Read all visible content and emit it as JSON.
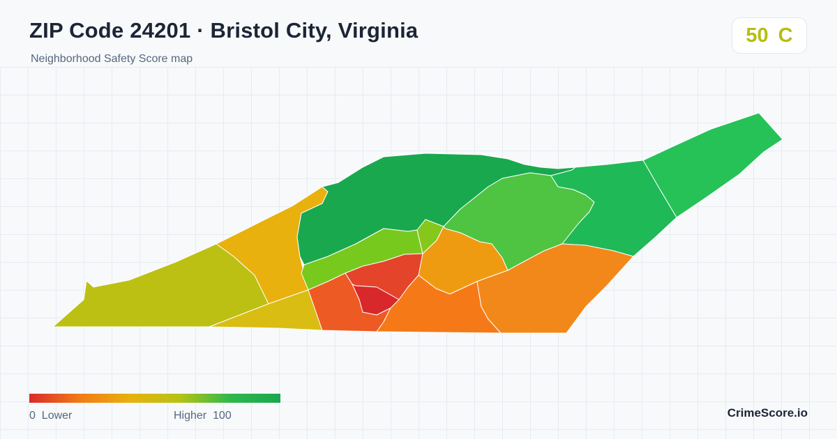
{
  "header": {
    "title": "ZIP Code 24201 · Bristol City, Virginia",
    "subtitle": "Neighborhood Safety Score map"
  },
  "score": {
    "value": "50",
    "grade": "C",
    "color": "#b5be12"
  },
  "legend": {
    "low_label": "0  Lower",
    "high_label": "Higher  100",
    "gradient_colors": [
      "#d92b2b",
      "#f27a16",
      "#e8b10d",
      "#b5c314",
      "#2fb84b",
      "#1aa74f"
    ]
  },
  "brand": "CrimeScore.io",
  "map": {
    "regions": [
      {
        "name": "west-tail",
        "color": "#bcc012"
      },
      {
        "name": "west-upper",
        "color": "#e8b10d"
      },
      {
        "name": "west-lower-wedge",
        "color": "#d9bd12"
      },
      {
        "name": "north-central",
        "color": "#1aa84f"
      },
      {
        "name": "central-band",
        "color": "#78c91e"
      },
      {
        "name": "central-north-sliver",
        "color": "#86c71c"
      },
      {
        "name": "northeast-mid",
        "color": "#4ec442"
      },
      {
        "name": "far-northeast",
        "color": "#26c258"
      },
      {
        "name": "east-band",
        "color": "#1fb957"
      },
      {
        "name": "center-orange",
        "color": "#ef9b12"
      },
      {
        "name": "center-red-ring",
        "color": "#e4442a"
      },
      {
        "name": "center-red-core",
        "color": "#d9282b"
      },
      {
        "name": "south-west-red",
        "color": "#ee5a23"
      },
      {
        "name": "south-central",
        "color": "#f57a17"
      },
      {
        "name": "south-east",
        "color": "#f2881a"
      }
    ]
  }
}
